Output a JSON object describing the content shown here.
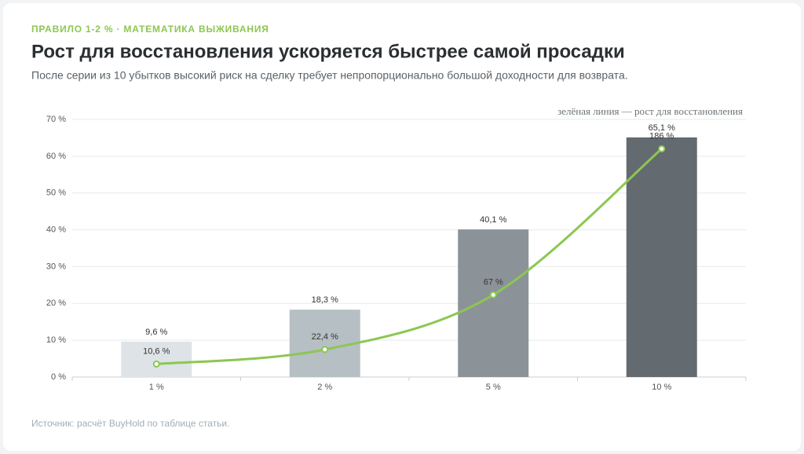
{
  "header": {
    "kicker": "ПРАВИЛО 1-2 % · МАТЕМАТИКА ВЫЖИВАНИЯ",
    "title": "Рост для восстановления ускоряется быстрее самой просадки",
    "subtitle": "После серии из 10 убытков высокий риск на сделку требует непропорционально большой доходности для возврата."
  },
  "chart_data": {
    "type": "bar",
    "annotation": "зелёная линия — рост для восстановления",
    "categories": [
      "1 %",
      "2 %",
      "5 %",
      "10 %"
    ],
    "series": [
      {
        "type": "bar",
        "colors": [
          "#dde3e6",
          "#b6bfc4",
          "#8b9399",
          "#636b70"
        ],
        "values": [
          9.6,
          18.3,
          40.1,
          65.1
        ],
        "value_labels": [
          "9,6 %",
          "18,3 %",
          "40,1 %",
          "65,1 %"
        ]
      },
      {
        "type": "line",
        "axis": "y2",
        "color": "#8cc751",
        "values": [
          10.6,
          22.4,
          67,
          186
        ],
        "value_labels": [
          "10,6 %",
          "22,4 %",
          "67 %",
          "186 %"
        ]
      }
    ],
    "ylim": [
      0,
      70
    ],
    "yticks": [
      {
        "value": 0,
        "label": "0 %"
      },
      {
        "value": 10,
        "label": "10 %"
      },
      {
        "value": 20,
        "label": "20 %"
      },
      {
        "value": 30,
        "label": "30 %"
      },
      {
        "value": 40,
        "label": "40 %"
      },
      {
        "value": 50,
        "label": "50 %"
      },
      {
        "value": 60,
        "label": "60 %"
      },
      {
        "value": 70,
        "label": "70 %"
      }
    ],
    "y2lim": [
      0,
      210
    ],
    "grid": true
  },
  "footer": {
    "source": "Источник: расчёт BuyHold по таблице статьи."
  }
}
